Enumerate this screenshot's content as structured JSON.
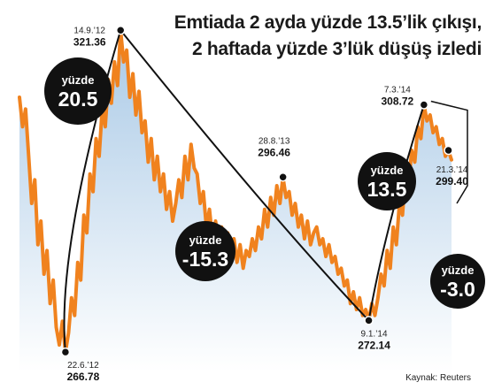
{
  "title_line1": "Emtiada 2 ayda yüzde 13.5’lik çıkışı,",
  "title_line2": "2 haftada yüzde 3’lük düşüş izledi",
  "source": "Kaynak: Reuters",
  "colors": {
    "line": "#f0821e",
    "area_top": "#a9c9e6",
    "area_bottom": "#ffffff",
    "bubble": "#111111",
    "arc": "#111111"
  },
  "chart_data": {
    "type": "area",
    "ylim": [
      262,
      325
    ],
    "key_points": [
      {
        "date": "22.6.’12",
        "value": "266.78"
      },
      {
        "date": "14.9.’12",
        "value": "321.36"
      },
      {
        "date": "28.8.’13",
        "value": "296.46"
      },
      {
        "date": "9.1.’14",
        "value": "272.14"
      },
      {
        "date": "7.3.’14",
        "value": "308.72"
      },
      {
        "date": "21.3.’14",
        "value": "299.40"
      }
    ],
    "changes": [
      {
        "label": "yüzde",
        "value": "20.5"
      },
      {
        "label": "yüzde",
        "value": "-15.3"
      },
      {
        "label": "yüzde",
        "value": "13.5"
      },
      {
        "label": "yüzde",
        "value": "-3.0"
      }
    ],
    "series": [
      {
        "values": [
          310,
          305,
          308,
          300,
          292,
          296,
          285,
          289,
          280,
          284,
          275,
          279,
          271,
          268,
          272,
          266.78,
          270,
          276,
          273,
          282,
          279,
          290,
          287,
          297,
          294,
          303,
          300,
          308,
          305,
          313,
          309,
          316,
          312,
          321.36,
          316,
          318,
          310,
          314,
          307,
          311,
          304,
          306,
          299,
          303,
          296,
          300,
          294,
          297,
          291,
          294,
          289,
          292,
          296,
          293,
          300,
          296,
          302,
          298,
          297,
          292,
          294,
          288,
          291,
          286,
          289,
          285,
          288,
          284,
          287,
          283,
          286,
          282,
          285,
          281,
          284,
          283,
          286,
          284,
          288,
          286,
          291,
          288,
          293,
          290,
          295,
          292,
          296.46,
          293,
          294,
          290,
          292,
          288,
          290,
          286,
          289,
          285,
          287,
          288,
          285,
          286,
          283,
          285,
          282,
          283,
          280,
          281,
          278,
          279,
          275,
          277,
          274,
          276,
          273,
          274,
          272.14,
          275,
          273,
          276,
          280,
          278,
          284,
          281,
          288,
          285,
          292,
          290,
          297,
          295,
          301,
          299,
          305,
          303,
          308.72,
          306,
          307,
          304,
          305,
          302,
          303,
          300,
          301,
          299.4
        ]
      }
    ]
  }
}
